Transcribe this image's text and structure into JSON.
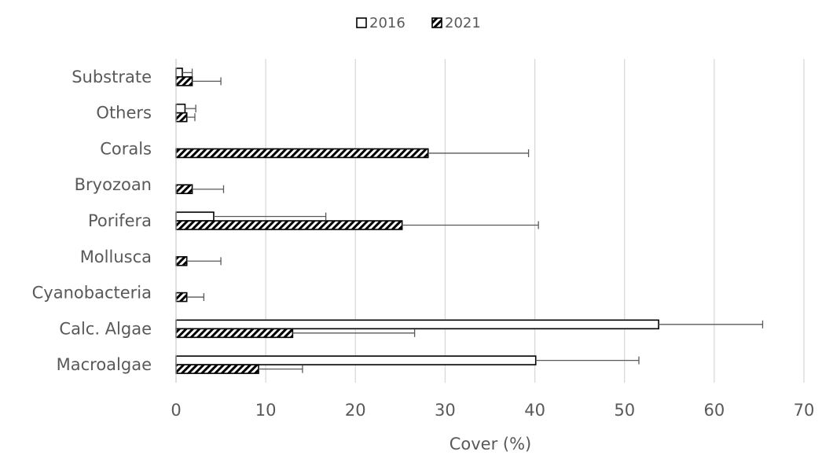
{
  "chart_data": {
    "type": "bar",
    "orientation": "horizontal",
    "title": "",
    "xlabel": "Cover (%)",
    "ylabel": "",
    "xlim": [
      0,
      70
    ],
    "xticks": [
      0,
      10,
      20,
      30,
      40,
      50,
      60,
      70
    ],
    "grid": true,
    "legend_position": "top",
    "categories": [
      "Substrate",
      "Others",
      "Corals",
      "Bryozoan",
      "Porifera",
      "Mollusca",
      "Cyanobacteria",
      "Calc. Algae",
      "Macroalgae"
    ],
    "series": [
      {
        "name": "2016",
        "pattern": "none",
        "values": [
          0.7,
          1.0,
          0,
          0,
          4.2,
          0,
          0,
          53.8,
          40.1
        ],
        "errors": [
          1.1,
          1.2,
          0,
          0,
          12.5,
          0,
          0,
          11.6,
          11.5
        ]
      },
      {
        "name": "2021",
        "pattern": "diagonal-hatch",
        "values": [
          1.8,
          1.2,
          28.1,
          1.8,
          25.2,
          1.2,
          1.2,
          13.0,
          9.2
        ],
        "errors": [
          3.2,
          0.9,
          11.2,
          3.5,
          15.2,
          3.8,
          1.9,
          13.6,
          4.9
        ]
      }
    ],
    "colors": {
      "bar_stroke": "#000000",
      "grid": "#d9d9d9",
      "text": "#595959",
      "error_bar": "#595959"
    }
  }
}
